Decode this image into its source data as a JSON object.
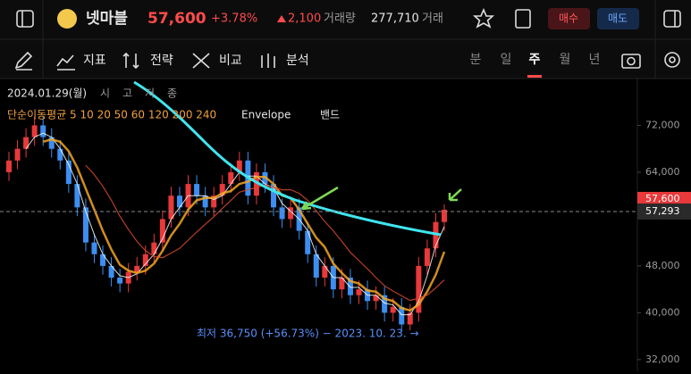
{
  "header": {
    "name": "넷마블",
    "price": "57,600",
    "change_pct": "+3.78%",
    "change": "2,100",
    "volume_label": "거래량",
    "volume": "277,710",
    "amount_label": "거래",
    "buy": "매수",
    "sell": "매도"
  },
  "toolbar": {
    "tools": [
      "지표",
      "전략",
      "비교",
      "분석"
    ],
    "periods": [
      "분",
      "일",
      "주",
      "월",
      "년"
    ],
    "active_period": 2
  },
  "chart_data": {
    "type": "candlestick",
    "date_label": "2024.01.29(월)",
    "ohlc_labels": [
      "시",
      "고",
      "저",
      "종"
    ],
    "legend": [
      "단순이동평균 5 10 20 50 60 120 200 240",
      "Envelope",
      "밴드"
    ],
    "annotation": "최저 36,750 (+56.73%) − 2023. 10. 23. →",
    "up_color": "#e8393b",
    "down_color": "#3d8ef0",
    "candles": [
      [
        64000,
        67500,
        62500,
        66000
      ],
      [
        66000,
        69500,
        64500,
        68000
      ],
      [
        68000,
        71500,
        66500,
        70000
      ],
      [
        70000,
        73500,
        68500,
        72000
      ],
      [
        72000,
        73500,
        68500,
        70000
      ],
      [
        70000,
        71500,
        66500,
        68000
      ],
      [
        68000,
        69500,
        64500,
        66000
      ],
      [
        66000,
        67500,
        60500,
        62000
      ],
      [
        62000,
        63500,
        56500,
        58000
      ],
      [
        58000,
        59500,
        50500,
        52000
      ],
      [
        52000,
        53500,
        48500,
        50000
      ],
      [
        50000,
        51500,
        46500,
        48000
      ],
      [
        48000,
        49500,
        44500,
        46000
      ],
      [
        46000,
        47500,
        43500,
        45000
      ],
      [
        45000,
        48500,
        43500,
        47000
      ],
      [
        47000,
        49500,
        45500,
        48000
      ],
      [
        48000,
        51500,
        46500,
        50000
      ],
      [
        50000,
        53500,
        48500,
        52000
      ],
      [
        52000,
        57500,
        50500,
        56000
      ],
      [
        56000,
        61500,
        54500,
        60000
      ],
      [
        60000,
        61500,
        56500,
        58000
      ],
      [
        58000,
        63500,
        56500,
        62000
      ],
      [
        62000,
        63500,
        58500,
        60000
      ],
      [
        60000,
        61500,
        56500,
        58000
      ],
      [
        58000,
        61500,
        56500,
        60000
      ],
      [
        60000,
        63500,
        58500,
        62000
      ],
      [
        62000,
        65500,
        60500,
        64000
      ],
      [
        64000,
        67500,
        62500,
        66000
      ],
      [
        66000,
        67500,
        58500,
        60000
      ],
      [
        60000,
        65500,
        58500,
        64000
      ],
      [
        64000,
        65500,
        60500,
        62000
      ],
      [
        62000,
        63500,
        56500,
        58000
      ],
      [
        58000,
        59500,
        54500,
        56000
      ],
      [
        56000,
        59500,
        54500,
        58000
      ],
      [
        58000,
        59500,
        52500,
        54000
      ],
      [
        54000,
        55500,
        48500,
        50000
      ],
      [
        50000,
        51500,
        44500,
        46000
      ],
      [
        46000,
        49500,
        44500,
        48000
      ],
      [
        48000,
        49500,
        42500,
        44000
      ],
      [
        44000,
        47500,
        42500,
        46000
      ],
      [
        46000,
        47500,
        41500,
        43000
      ],
      [
        43000,
        45500,
        41500,
        44000
      ],
      [
        44000,
        45500,
        40500,
        42000
      ],
      [
        42000,
        44500,
        40500,
        43000
      ],
      [
        43000,
        44500,
        38500,
        40000
      ],
      [
        40000,
        42500,
        38500,
        41000
      ],
      [
        41000,
        42500,
        36750,
        38000
      ],
      [
        38000,
        41500,
        37000,
        40000
      ],
      [
        40000,
        49500,
        38500,
        48000
      ],
      [
        48000,
        52500,
        46500,
        51000
      ],
      [
        51000,
        57000,
        49500,
        55500
      ],
      [
        55500,
        58500,
        54000,
        57600
      ]
    ],
    "ylim": [
      30000,
      80000
    ],
    "yticks": [
      {
        "value": 32000,
        "label": "32,000"
      },
      {
        "value": 40000,
        "label": "40,000"
      },
      {
        "value": 48000,
        "label": "48,000"
      },
      {
        "value": 64000,
        "label": "64,000"
      },
      {
        "value": 72000,
        "label": "72,000"
      }
    ],
    "last_price": {
      "value": 57293,
      "label": "57,293"
    },
    "price_tag": "57,600"
  }
}
